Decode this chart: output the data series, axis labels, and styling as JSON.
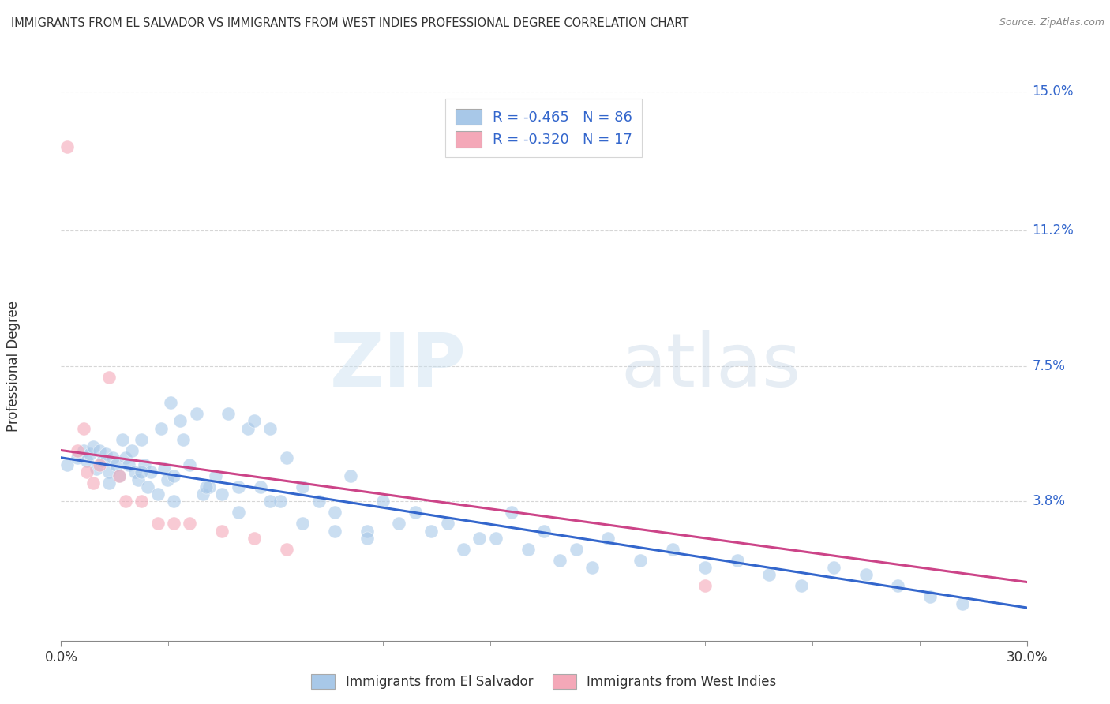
{
  "title": "IMMIGRANTS FROM EL SALVADOR VS IMMIGRANTS FROM WEST INDIES PROFESSIONAL DEGREE CORRELATION CHART",
  "source": "Source: ZipAtlas.com",
  "ylabel": "Professional Degree",
  "xlim": [
    0.0,
    0.3
  ],
  "ylim": [
    0.0,
    0.15
  ],
  "x_tick_positions": [
    0.0,
    0.3
  ],
  "x_tick_labels": [
    "0.0%",
    "30.0%"
  ],
  "y_tick_positions": [
    0.038,
    0.075,
    0.112,
    0.15
  ],
  "y_tick_labels": [
    "3.8%",
    "7.5%",
    "11.2%",
    "15.0%"
  ],
  "legend_R1": "-0.465",
  "legend_N1": "86",
  "legend_R2": "-0.320",
  "legend_N2": "17",
  "color_blue": "#a8c8e8",
  "color_pink": "#f4a8b8",
  "line_color_blue": "#3366cc",
  "line_color_pink": "#cc4488",
  "watermark_zip": "ZIP",
  "watermark_atlas": "atlas",
  "blue_scatter_x": [
    0.002,
    0.005,
    0.007,
    0.008,
    0.009,
    0.01,
    0.011,
    0.012,
    0.013,
    0.014,
    0.015,
    0.016,
    0.017,
    0.018,
    0.019,
    0.02,
    0.021,
    0.022,
    0.023,
    0.024,
    0.025,
    0.026,
    0.027,
    0.028,
    0.03,
    0.031,
    0.032,
    0.033,
    0.034,
    0.035,
    0.037,
    0.038,
    0.04,
    0.042,
    0.044,
    0.046,
    0.048,
    0.05,
    0.052,
    0.055,
    0.058,
    0.06,
    0.062,
    0.065,
    0.068,
    0.07,
    0.075,
    0.08,
    0.085,
    0.09,
    0.095,
    0.1,
    0.11,
    0.12,
    0.13,
    0.14,
    0.15,
    0.16,
    0.17,
    0.18,
    0.19,
    0.2,
    0.21,
    0.22,
    0.23,
    0.24,
    0.25,
    0.26,
    0.27,
    0.28,
    0.015,
    0.025,
    0.035,
    0.045,
    0.055,
    0.065,
    0.075,
    0.085,
    0.095,
    0.105,
    0.115,
    0.125,
    0.135,
    0.145,
    0.155,
    0.165
  ],
  "blue_scatter_y": [
    0.048,
    0.05,
    0.052,
    0.049,
    0.051,
    0.053,
    0.047,
    0.052,
    0.049,
    0.051,
    0.046,
    0.05,
    0.048,
    0.045,
    0.055,
    0.05,
    0.048,
    0.052,
    0.046,
    0.044,
    0.055,
    0.048,
    0.042,
    0.046,
    0.04,
    0.058,
    0.047,
    0.044,
    0.065,
    0.045,
    0.06,
    0.055,
    0.048,
    0.062,
    0.04,
    0.042,
    0.045,
    0.04,
    0.062,
    0.042,
    0.058,
    0.06,
    0.042,
    0.058,
    0.038,
    0.05,
    0.042,
    0.038,
    0.035,
    0.045,
    0.03,
    0.038,
    0.035,
    0.032,
    0.028,
    0.035,
    0.03,
    0.025,
    0.028,
    0.022,
    0.025,
    0.02,
    0.022,
    0.018,
    0.015,
    0.02,
    0.018,
    0.015,
    0.012,
    0.01,
    0.043,
    0.046,
    0.038,
    0.042,
    0.035,
    0.038,
    0.032,
    0.03,
    0.028,
    0.032,
    0.03,
    0.025,
    0.028,
    0.025,
    0.022,
    0.02
  ],
  "pink_scatter_x": [
    0.002,
    0.005,
    0.007,
    0.008,
    0.01,
    0.012,
    0.015,
    0.018,
    0.02,
    0.025,
    0.03,
    0.035,
    0.04,
    0.05,
    0.06,
    0.07,
    0.2
  ],
  "pink_scatter_y": [
    0.135,
    0.052,
    0.058,
    0.046,
    0.043,
    0.048,
    0.072,
    0.045,
    0.038,
    0.038,
    0.032,
    0.032,
    0.032,
    0.03,
    0.028,
    0.025,
    0.015
  ],
  "blue_line_x": [
    0.0,
    0.3
  ],
  "blue_line_y": [
    0.05,
    0.009
  ],
  "pink_line_x": [
    0.0,
    0.3
  ],
  "pink_line_y": [
    0.052,
    0.016
  ]
}
